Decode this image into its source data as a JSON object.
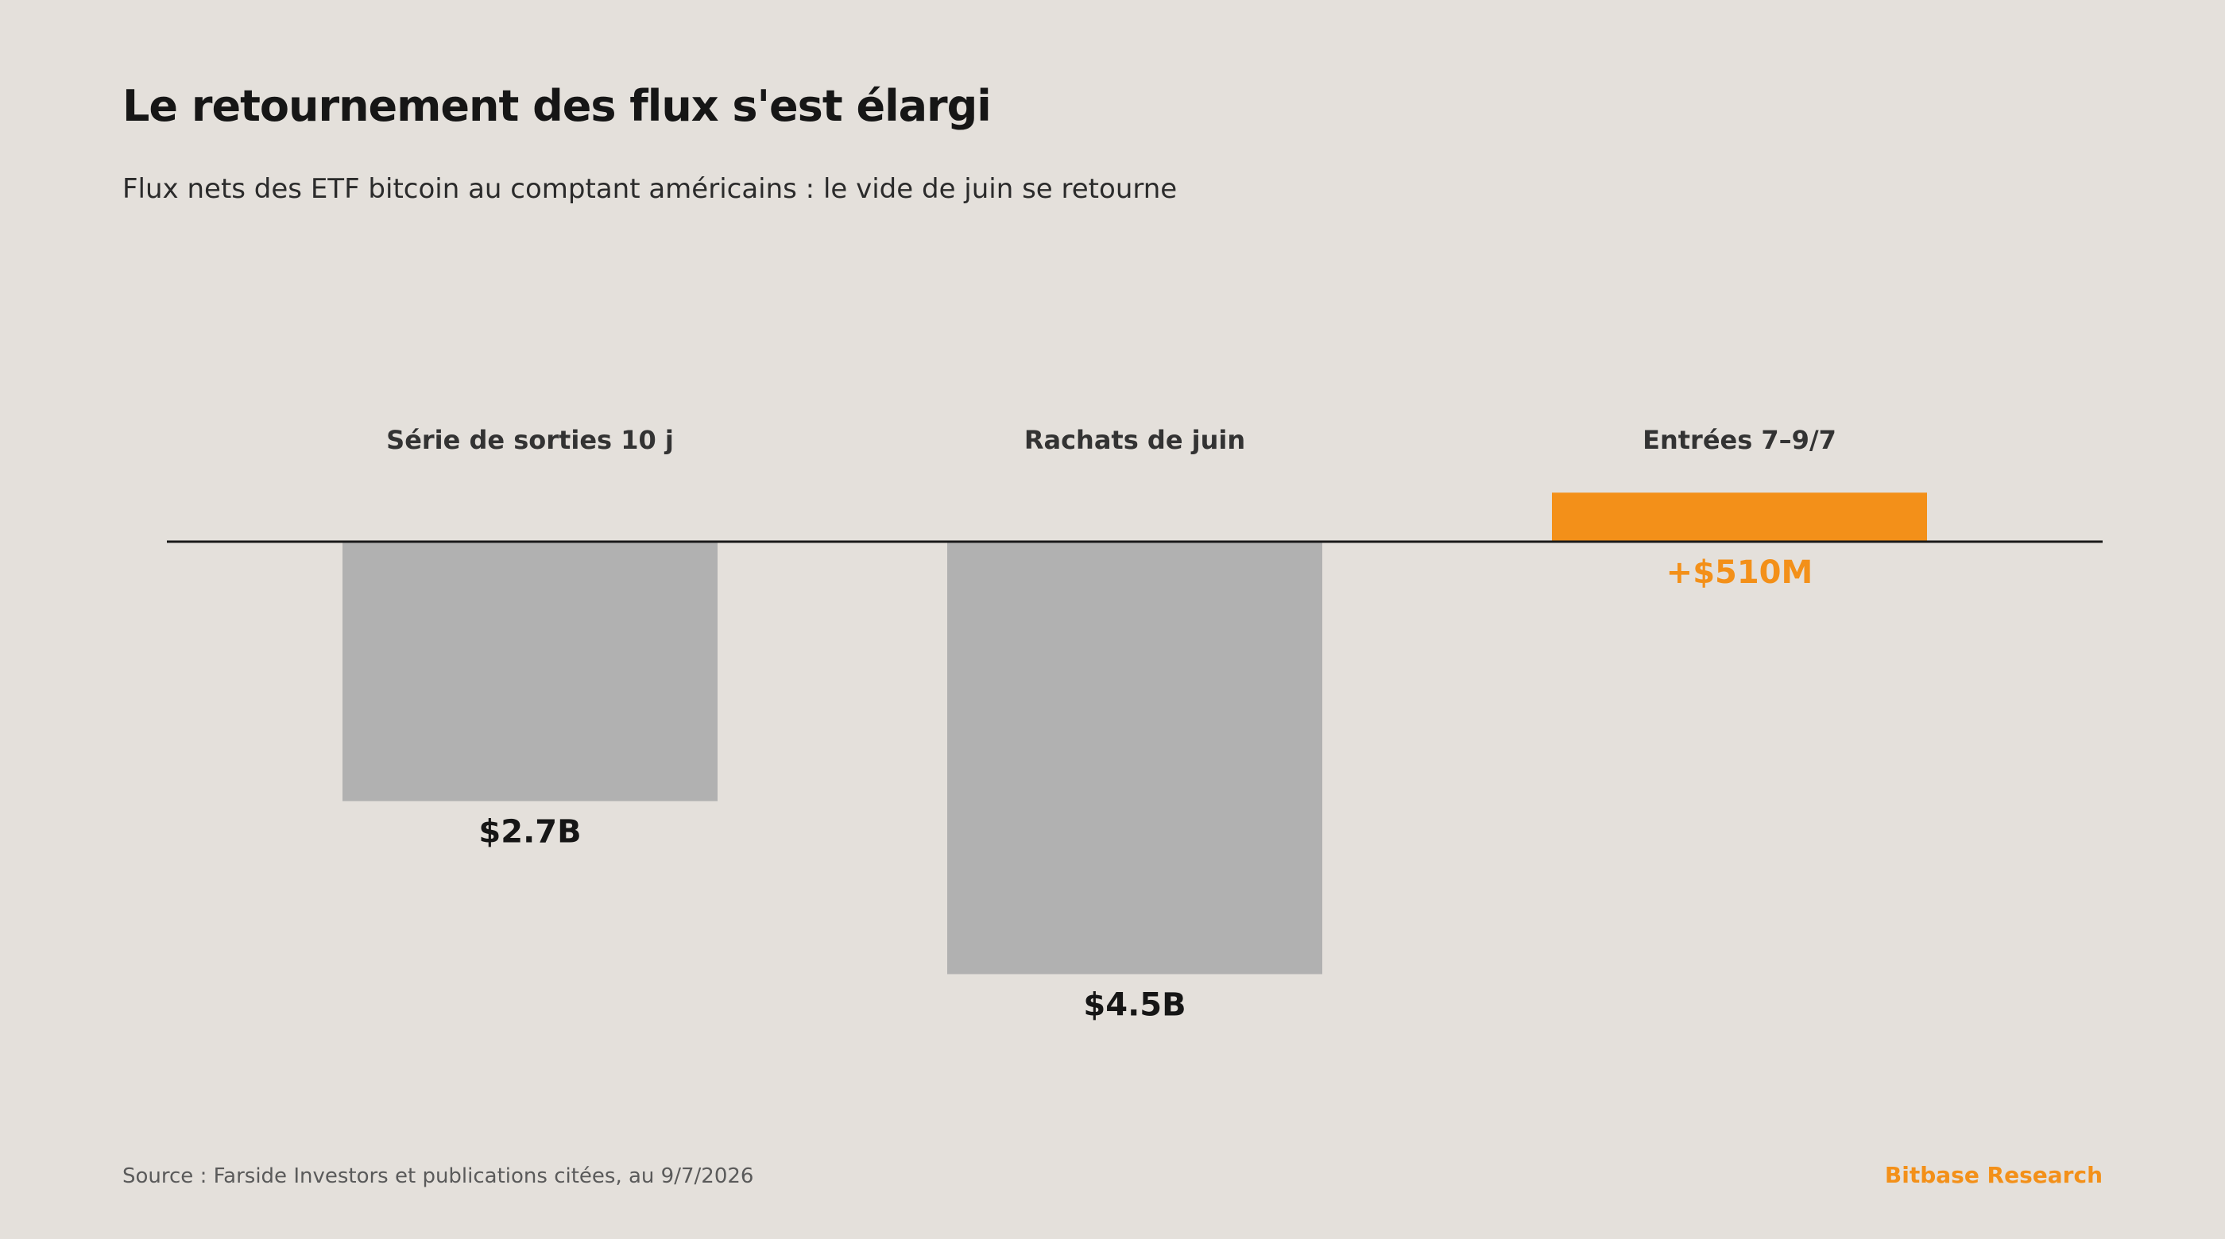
{
  "header": {
    "title": "Le retournement des flux s'est élargi",
    "subtitle": "Flux nets des ETF bitcoin au comptant américains : le vide de juin se retourne"
  },
  "footer": {
    "source": "Source : Farside Investors et publications citées, au 9/7/2026",
    "brand": "Bitbase Research"
  },
  "colors": {
    "outflow": "#b1b1b1",
    "inflow": "#f39019",
    "axis": "#1a1a1a",
    "label": "#333333",
    "value_negative": "#161616",
    "background": "#e4e0db"
  },
  "chart_data": {
    "type": "bar",
    "unit": "USD",
    "categories": [
      "Série de sorties 10 j",
      "Rachats de juin",
      "Entrées 7–9/7"
    ],
    "values": [
      -2.7,
      -4.5,
      0.51
    ],
    "value_units": "billion USD",
    "value_labels": [
      "$2.7B",
      "$4.5B",
      "+$510M"
    ],
    "grid": false,
    "legend": "none",
    "title": "",
    "xlabel": "",
    "ylabel": ""
  }
}
